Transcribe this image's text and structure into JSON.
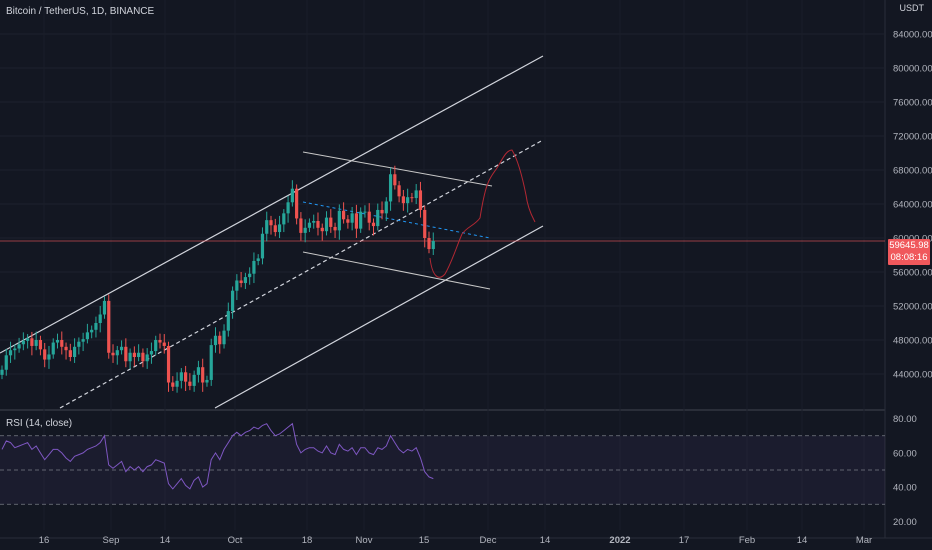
{
  "header": {
    "title": "Bitcoin / TetherUS, 1D, BINANCE",
    "currency": "USDT"
  },
  "indicator": {
    "label": "RSI (14, close)"
  },
  "last_price": {
    "value": "59645.98",
    "countdown": "08:08:16",
    "color": "#f0585c"
  },
  "colors": {
    "up": "#26a69a",
    "down": "#ef5350",
    "rsi_line": "#7e57c2",
    "projection": "#b22833",
    "mid_channel": "#2196f3"
  },
  "chart_data": [
    {
      "type": "candlestick",
      "title": "Bitcoin / TetherUS, 1D, BINANCE",
      "ylim": [
        40000,
        88000
      ],
      "y_ticks": [
        44000,
        48000,
        52000,
        56000,
        60000,
        64000,
        68000,
        72000,
        76000,
        80000,
        84000
      ],
      "y_tick_labels": [
        "44000.00",
        "48000.00",
        "52000.00",
        "56000.00",
        "60000.00",
        "64000.00",
        "68000.00",
        "72000.00",
        "76000.00",
        "80000.00",
        "84000.00"
      ],
      "x_tick_labels": [
        "16",
        "Sep",
        "14",
        "Oct",
        "18",
        "Nov",
        "15",
        "Dec",
        "14",
        "2022",
        "17",
        "Feb",
        "14",
        "Mar"
      ],
      "closes": [
        44500,
        46200,
        46800,
        47000,
        47500,
        47900,
        48200,
        47300,
        48000,
        46900,
        45700,
        46300,
        47700,
        48000,
        47200,
        46800,
        46000,
        47200,
        47800,
        48100,
        48900,
        49200,
        50000,
        51000,
        52600,
        46500,
        46200,
        46800,
        47200,
        45500,
        46500,
        46000,
        46500,
        45500,
        46300,
        46700,
        48000,
        47700,
        47300,
        43000,
        42500,
        43200,
        44200,
        43100,
        42600,
        43900,
        44800,
        43000,
        43300,
        47400,
        48500,
        47500,
        49100,
        51400,
        53800,
        55000,
        54700,
        55400,
        55800,
        57300,
        57600,
        60500,
        62100,
        61500,
        60700,
        61600,
        62900,
        64200,
        65800,
        62300,
        60600,
        61200,
        61800,
        62000,
        61200,
        60800,
        62400,
        61300,
        60900,
        63200,
        62200,
        61800,
        62900,
        61100,
        63100,
        63100,
        61800,
        61400,
        63300,
        62900,
        64300,
        67500,
        66200,
        64900,
        64100,
        64800,
        64700,
        65600,
        63300,
        60000,
        58700,
        59645.98
      ],
      "rsi": {
        "label": "RSI (14, close)",
        "ylim": [
          15,
          85
        ],
        "y_ticks": [
          20,
          40,
          60,
          80
        ],
        "y_tick_labels": [
          "20.00",
          "40.00",
          "60.00",
          "80.00"
        ],
        "bands": [
          30,
          50,
          70
        ],
        "values": [
          62,
          67,
          66,
          63,
          64,
          65,
          66,
          62,
          64,
          60,
          56,
          59,
          62,
          62,
          60,
          57,
          55,
          58,
          59,
          60,
          62,
          63,
          64,
          66,
          70,
          53,
          51,
          53,
          55,
          49,
          52,
          50,
          52,
          49,
          52,
          53,
          56,
          55,
          54,
          42,
          39,
          42,
          45,
          41,
          39,
          44,
          46,
          40,
          42,
          56,
          60,
          56,
          62,
          66,
          70,
          72,
          70,
          72,
          73,
          75,
          74,
          76,
          77,
          73,
          70,
          71,
          73,
          75,
          77,
          65,
          60,
          62,
          63,
          63,
          61,
          60,
          64,
          60,
          59,
          65,
          62,
          61,
          63,
          59,
          63,
          63,
          60,
          59,
          63,
          62,
          64,
          70,
          66,
          62,
          60,
          62,
          61,
          63,
          57,
          49,
          46,
          45
        ]
      }
    }
  ]
}
